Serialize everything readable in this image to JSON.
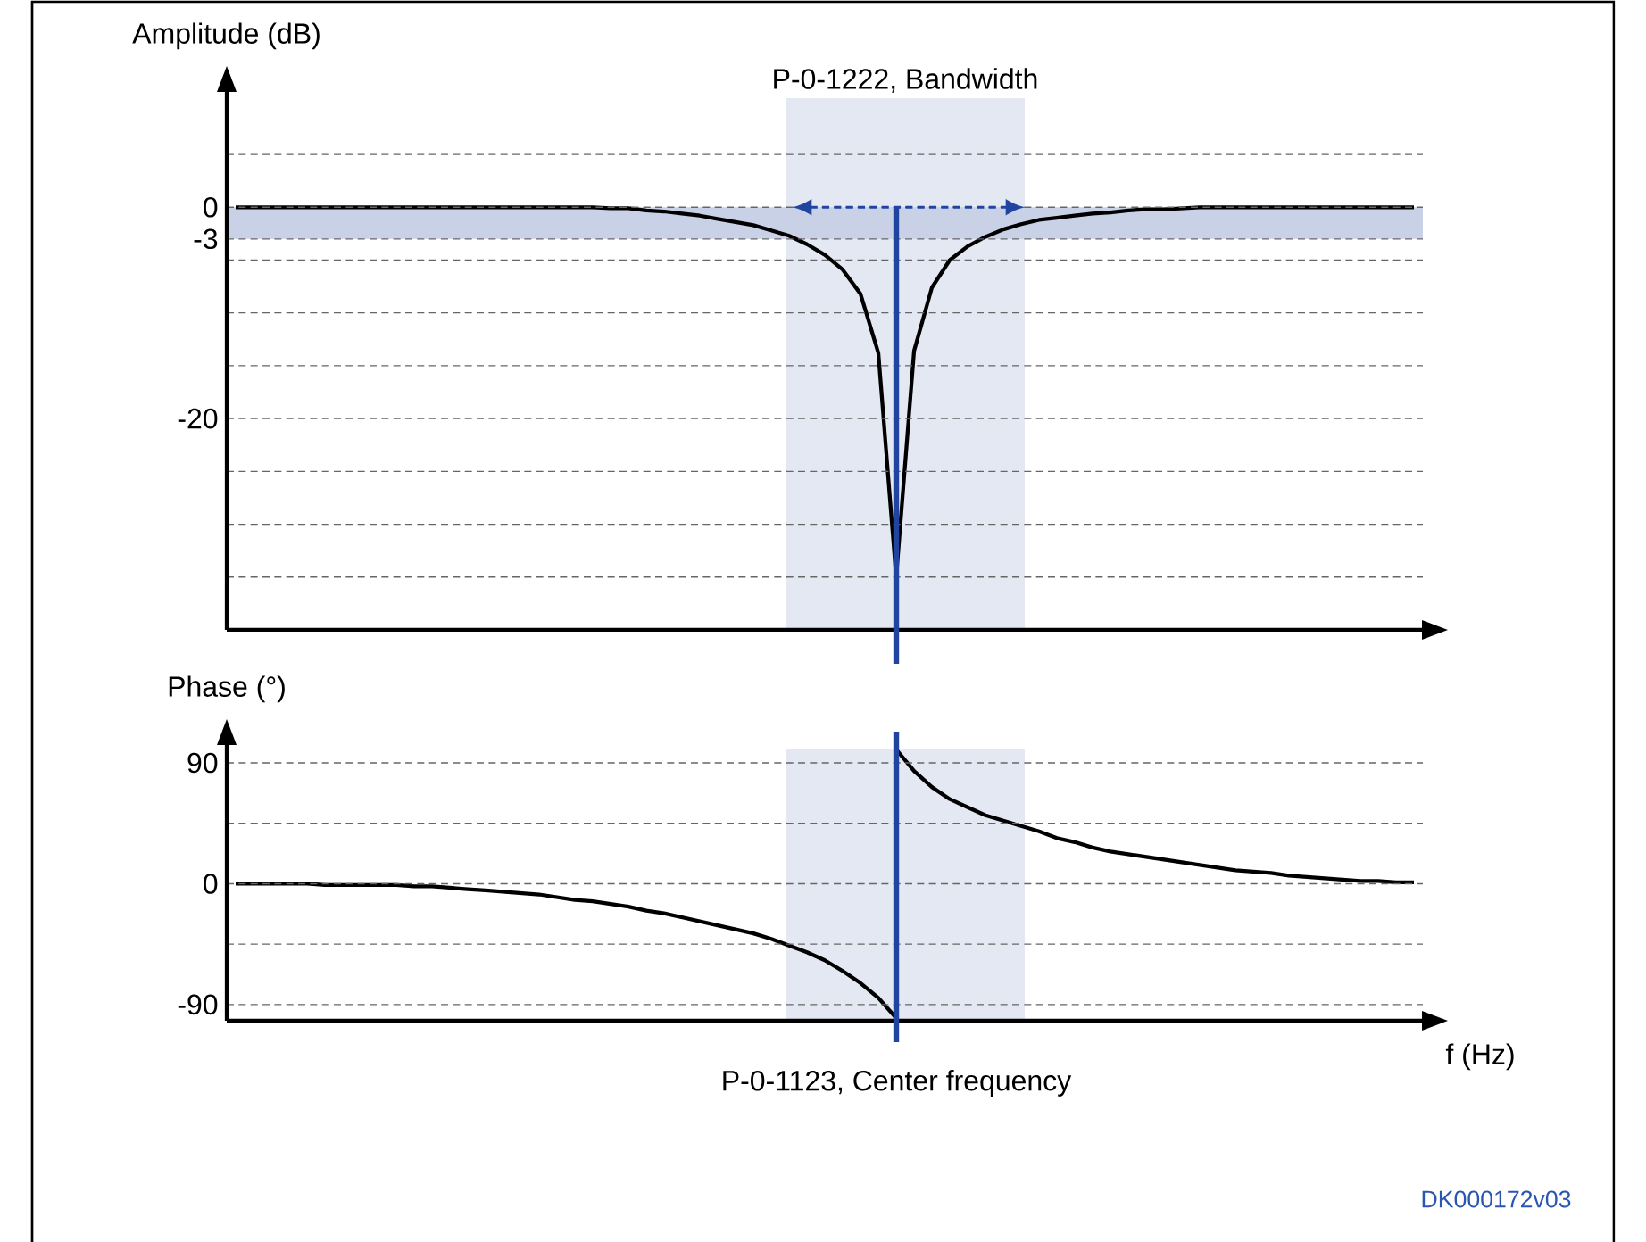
{
  "chart_data": [
    {
      "type": "line",
      "ylabel": "Amplitude (dB)",
      "categories": [
        null,
        null,
        null,
        null,
        null,
        null,
        null,
        null,
        null,
        null,
        null,
        null,
        null,
        null,
        null,
        null,
        null,
        null,
        null,
        null,
        null,
        null,
        null,
        null,
        null,
        null,
        null,
        null,
        null,
        null,
        null,
        null,
        null,
        null,
        null,
        null,
        null,
        null,
        null,
        null,
        null,
        null,
        null,
        null,
        null,
        null,
        null,
        null,
        null,
        null,
        null,
        null,
        null,
        null,
        null,
        null,
        null,
        null,
        null,
        null,
        null,
        null,
        null,
        null,
        null,
        null,
        null
      ],
      "series": [
        {
          "color": "#000000",
          "values": [
            0,
            0,
            0,
            0,
            0,
            0,
            0,
            0,
            0,
            0,
            0,
            0,
            0,
            0,
            0,
            0,
            0,
            0,
            0,
            0,
            0,
            -0.1,
            -0.1,
            -0.3,
            -0.4,
            -0.6,
            -0.8,
            -1.1,
            -1.4,
            -1.7,
            -2.2,
            -2.7,
            -3.5,
            -4.5,
            -5.9,
            -8.2,
            -13.8,
            -35,
            -13.6,
            -7.6,
            -5.0,
            -3.7,
            -2.8,
            -2.1,
            -1.6,
            -1.2,
            -1.0,
            -0.8,
            -0.6,
            -0.5,
            -0.3,
            -0.2,
            -0.2,
            -0.1,
            0,
            0,
            0,
            0,
            0,
            0,
            0,
            0,
            0,
            0,
            0,
            0,
            0
          ]
        }
      ],
      "ylim": [
        -40,
        11
      ],
      "yticks": [
        {
          "value": 5,
          "label": null
        },
        0,
        -3,
        {
          "value": -5,
          "label": null
        },
        {
          "value": -10,
          "label": null
        },
        {
          "value": -15,
          "label": null
        },
        -20,
        {
          "value": -25,
          "label": null
        },
        {
          "value": -30,
          "label": null
        },
        {
          "value": -35,
          "label": null
        }
      ],
      "tick_labels": "y",
      "grid": "y",
      "bands": [
        {
          "axis": "y",
          "from": -3,
          "to": 0,
          "color": "#c9d1e7"
        }
      ],
      "annotations": [
        "P-0-1222, Bandwidth"
      ]
    },
    {
      "type": "line",
      "ylabel": "Phase (°)",
      "xlabel": "f (Hz)",
      "categories": [
        null,
        null,
        null,
        null,
        null,
        null,
        null,
        null,
        null,
        null,
        null,
        null,
        null,
        null,
        null,
        null,
        null,
        null,
        null,
        null,
        null,
        null,
        null,
        null,
        null,
        null,
        null,
        null,
        null,
        null,
        null,
        null,
        null,
        null,
        null,
        null,
        null,
        null,
        null,
        null,
        null,
        null,
        null,
        null,
        null,
        null,
        null,
        null,
        null,
        null,
        null,
        null,
        null,
        null,
        null,
        null,
        null,
        null,
        null,
        null,
        null,
        null,
        null,
        null,
        null,
        null,
        null
      ],
      "series": [
        {
          "color": "#000000",
          "values": [
            0,
            0,
            0,
            0,
            0,
            -1,
            -1,
            -1,
            -1,
            -1,
            -2,
            -2,
            -3,
            -4,
            -5,
            -6,
            -7,
            -8,
            -10,
            -12,
            -13,
            -15,
            -17,
            -20,
            -22,
            -25,
            -28,
            -31,
            -34,
            -37,
            -41,
            -46,
            -51,
            -57,
            -65,
            -74,
            -85,
            -100,
            null,
            null,
            null,
            null,
            null,
            null,
            null,
            null,
            null,
            null,
            null,
            null,
            null,
            null,
            null,
            null,
            null,
            null,
            null,
            null,
            null,
            null,
            null,
            null,
            null,
            null,
            null,
            null,
            null
          ]
        },
        {
          "color": "#000000",
          "values": [
            null,
            null,
            null,
            null,
            null,
            null,
            null,
            null,
            null,
            null,
            null,
            null,
            null,
            null,
            null,
            null,
            null,
            null,
            null,
            null,
            null,
            null,
            null,
            null,
            null,
            null,
            null,
            null,
            null,
            null,
            null,
            null,
            null,
            null,
            null,
            null,
            null,
            100,
            84,
            72,
            63,
            57,
            51,
            47,
            43,
            39,
            34,
            31,
            27,
            24,
            22,
            20,
            18,
            16,
            14,
            12,
            10,
            9,
            8,
            6,
            5,
            4,
            3,
            2,
            2,
            1,
            1
          ]
        }
      ],
      "ylim": [
        -102,
        104
      ],
      "yticks": [
        90,
        {
          "value": 45,
          "label": null
        },
        0,
        {
          "value": -45,
          "label": null
        },
        -90
      ],
      "tick_labels": "y",
      "grid": "y",
      "annotations": [
        "P-0-1123, Center frequency",
        "DK000172v03"
      ]
    }
  ]
}
